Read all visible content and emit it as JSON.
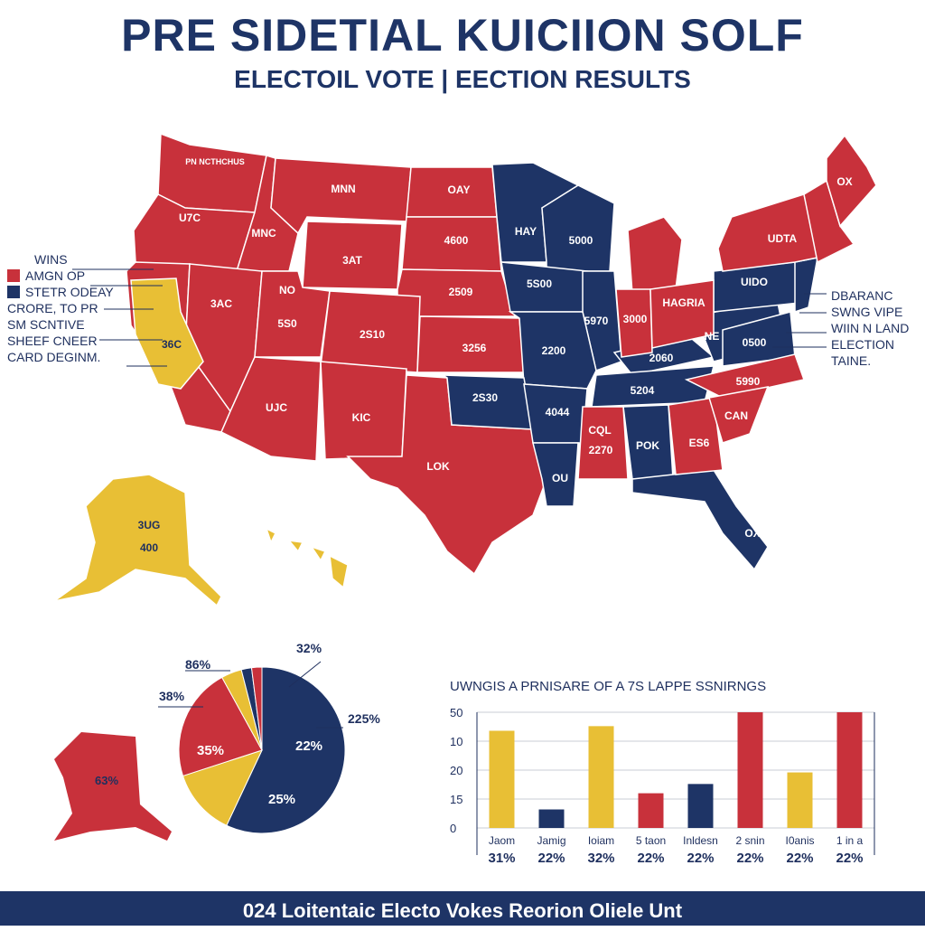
{
  "header": {
    "title": "PRE SIDETIAL KUICIION SOLF",
    "subtitle": "ELECTOIL VOTE |  EECTION RESULTS"
  },
  "colors": {
    "red": "#c8313b",
    "blue": "#1e3466",
    "yellow": "#e8bf35"
  },
  "legend_left": {
    "wins_label": "WINS",
    "red_label": "AMGN OP",
    "blue_label": "STETR ODEAY",
    "lines": [
      "CRORE, TO PR",
      "SM SCNTIVE",
      "SHEEF CNEER",
      "CARD DEGINM."
    ]
  },
  "legend_right": {
    "lines": [
      "DBARANC",
      "SWNG VIPE",
      "WIIN N LAND",
      "ELECTION",
      "TAINE."
    ]
  },
  "map": {
    "labels": {
      "wa": "PN NCTHCHUS",
      "or": "U7C",
      "id": "MNC",
      "mt": "MNN",
      "nd": "OAY",
      "sd": "4600",
      "wy": "3AT",
      "ne": "2509",
      "ca": "3AC",
      "nv": "NO",
      "ut": "5S0",
      "co": "2S10",
      "ks": "3256",
      "az": "UJC",
      "nm": "KIC",
      "tx": "LOK",
      "ok": "2S30",
      "mn": "HAY",
      "wi": "5000",
      "ia": "5S00",
      "mo": "2200",
      "il": "5970",
      "ar": "4044",
      "la": "OU",
      "ms": "CQL",
      "ms2": "2270",
      "al": "POK",
      "ga": "ES6",
      "in": "3000",
      "oh": "HAGRIA",
      "ky": "2060",
      "tn": "5204",
      "va": "NE",
      "md": "0500",
      "pa": "UIDO",
      "ny": "UDTA",
      "me": "OX",
      "nc": "5990",
      "sc": "CAN",
      "fl": "OX",
      "ca_inset": "36C",
      "ak": "3UG",
      "ak2": "400"
    }
  },
  "pie": {
    "labels": {
      "top_left": "86%",
      "left": "38%",
      "top_right": "32%",
      "right": "225%"
    },
    "inset_label": "63%"
  },
  "chart_data": [
    {
      "type": "pie",
      "slices": [
        {
          "label": "22%",
          "value": 57
        },
        {
          "label": "25%",
          "value": 0,
          "text_only": true
        },
        {
          "label": "",
          "value": 13
        },
        {
          "label": "35%",
          "value": 22
        },
        {
          "label": "",
          "value": 4
        },
        {
          "label": "",
          "value": 2
        },
        {
          "label": "",
          "value": 2
        }
      ],
      "slice_colors": [
        "#1e3466",
        "#1e3466",
        "#e8bf35",
        "#c8313b",
        "#e8bf35",
        "#1e3466",
        "#c8313b"
      ]
    },
    {
      "type": "bar",
      "title": "UWNGIS A PRNISARE OF A 7S LAPPE SSNIRNGS",
      "categories": [
        "Jaom",
        "Jamig",
        "Ioiam",
        "5 taon",
        "Inldesn",
        "2 snin",
        "I0anis",
        "1 in a"
      ],
      "percent_labels": [
        "31%",
        "22%",
        "32%",
        "22%",
        "22%",
        "22%",
        "22%",
        "22%"
      ],
      "values": [
        42,
        8,
        44,
        15,
        19,
        50,
        24,
        50
      ],
      "colors": [
        "#e8bf35",
        "#1e3466",
        "#e8bf35",
        "#c8313b",
        "#1e3466",
        "#c8313b",
        "#e8bf35",
        "#c8313b"
      ],
      "tick_labels": [
        "0",
        "15",
        "20",
        "10",
        "50"
      ],
      "ylim": [
        0,
        50
      ],
      "grid": true
    }
  ],
  "footer": {
    "text": "024 Loitentaic Electo Vokes Reorion Oliele Unt"
  }
}
